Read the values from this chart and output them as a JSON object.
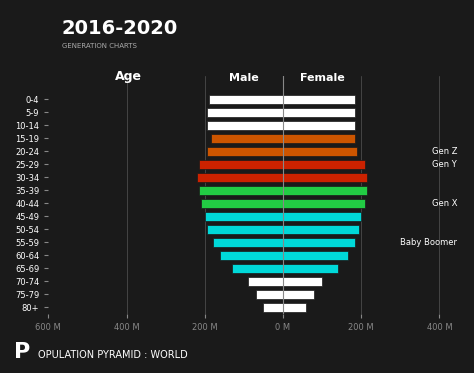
{
  "title": "2016-2020",
  "subtitle": "GENERATION CHARTS",
  "footer": "POPULATION PYRAMID : WORLD",
  "age_groups": [
    "80+",
    "75-79",
    "70-74",
    "65-69",
    "60-64",
    "55-59",
    "50-54",
    "45-49",
    "40-44",
    "35-39",
    "30-34",
    "25-29",
    "20-24",
    "15-19",
    "10-14",
    "5-9",
    "0-4"
  ],
  "male": [
    50,
    70,
    90,
    130,
    160,
    180,
    195,
    200,
    210,
    215,
    220,
    215,
    195,
    185,
    195,
    195,
    190
  ],
  "female": [
    60,
    80,
    100,
    140,
    165,
    185,
    195,
    200,
    210,
    215,
    215,
    210,
    190,
    185,
    185,
    185,
    185
  ],
  "colors": {
    "80+": "#ffffff",
    "75-79": "#ffffff",
    "70-74": "#ffffff",
    "65-69": "#00d9d9",
    "60-64": "#00d9d9",
    "55-59": "#00d9d9",
    "50-54": "#00d9d9",
    "45-49": "#00d9d9",
    "40-44": "#22cc44",
    "35-39": "#22cc44",
    "30-34": "#cc2200",
    "25-29": "#cc2200",
    "20-24": "#cc5500",
    "15-19": "#cc5500",
    "10-14": "#ffffff",
    "5-9": "#ffffff",
    "0-4": "#ffffff"
  },
  "annotations": [
    {
      "label": "Baby Boomer",
      "age": "55-59"
    },
    {
      "label": "Gen X",
      "age": "40-44"
    },
    {
      "label": "Gen Y",
      "age": "25-29"
    },
    {
      "label": "Gen Z",
      "age": "20-24"
    }
  ],
  "bg_color": "#1a1a1a",
  "text_color": "#ffffff",
  "bar_height": 0.7,
  "xlim": 450,
  "xlabel_ticks": [
    600,
    400,
    200,
    0,
    200,
    400
  ],
  "xlabel_labels": [
    "600 M",
    "400 M",
    "200 M",
    "0 M",
    "200 M",
    "400 M"
  ]
}
